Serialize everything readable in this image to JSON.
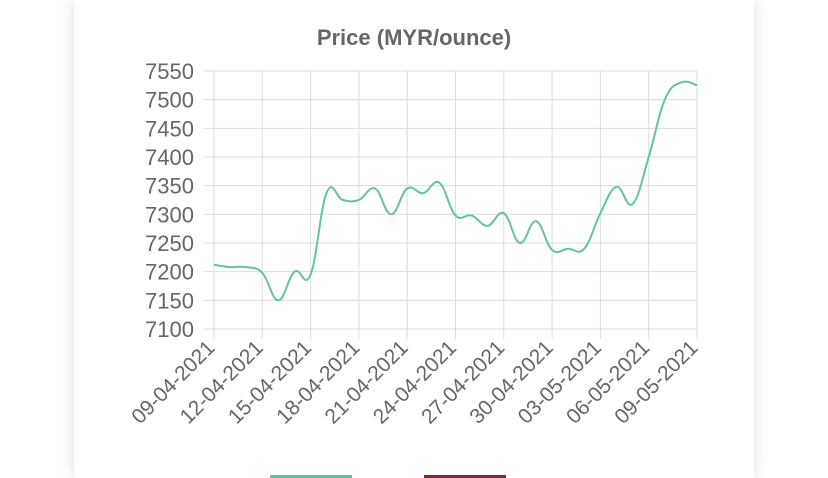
{
  "chart_data": {
    "type": "line",
    "title": "Price (MYR/ounce)",
    "xlabel": "",
    "ylabel": "",
    "ylim": [
      7100,
      7550
    ],
    "yticks": [
      7100,
      7150,
      7200,
      7250,
      7300,
      7350,
      7400,
      7450,
      7500,
      7550
    ],
    "x": [
      "09-04-2021",
      "10-04-2021",
      "11-04-2021",
      "12-04-2021",
      "13-04-2021",
      "14-04-2021",
      "15-04-2021",
      "16-04-2021",
      "17-04-2021",
      "18-04-2021",
      "19-04-2021",
      "20-04-2021",
      "21-04-2021",
      "22-04-2021",
      "23-04-2021",
      "24-04-2021",
      "25-04-2021",
      "26-04-2021",
      "27-04-2021",
      "28-04-2021",
      "29-04-2021",
      "30-04-2021",
      "01-05-2021",
      "02-05-2021",
      "03-05-2021",
      "04-05-2021",
      "05-05-2021",
      "06-05-2021",
      "07-05-2021",
      "08-05-2021",
      "09-05-2021"
    ],
    "xtick_labels": [
      "09-04-2021",
      "12-04-2021",
      "15-04-2021",
      "18-04-2021",
      "21-04-2021",
      "24-04-2021",
      "27-04-2021",
      "30-04-2021",
      "03-05-2021",
      "06-05-2021",
      "09-05-2021"
    ],
    "series": [
      {
        "values": [
          7212,
          7208,
          7208,
          7198,
          7150,
          7200,
          7195,
          7338,
          7325,
          7325,
          7345,
          7300,
          7345,
          7337,
          7355,
          7298,
          7298,
          7280,
          7302,
          7250,
          7288,
          7238,
          7240,
          7240,
          7302,
          7348,
          7318,
          7400,
          7500,
          7530,
          7525
        ],
        "color": "#66c2a5"
      }
    ],
    "grid": true,
    "legend": "bottom"
  },
  "colors": {
    "line": "#66c2a5",
    "legend_second": "#7a2a3a",
    "grid": "#dddddd",
    "text": "#666666"
  }
}
